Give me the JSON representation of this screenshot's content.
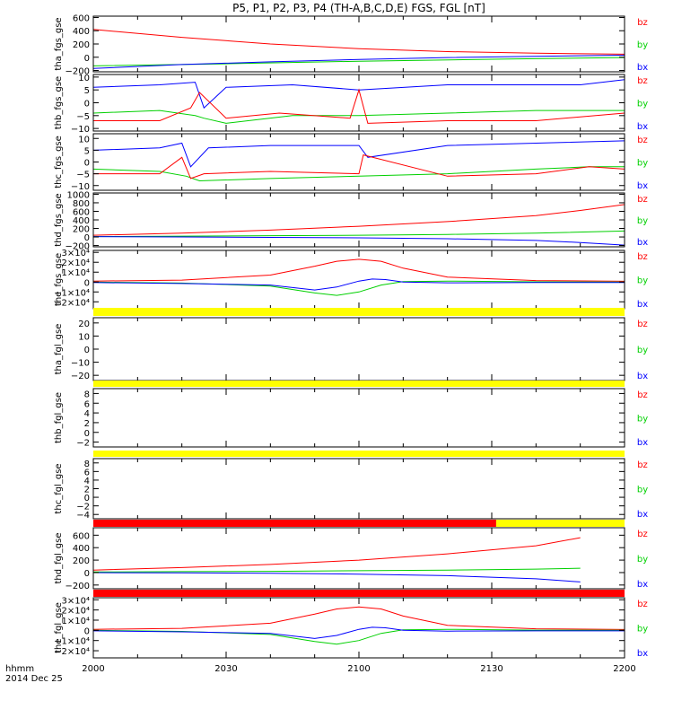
{
  "title": "P5, P1, P2, P3, P4 (TH-A,B,C,D,E) FGS, FGL [nT]",
  "footer": {
    "time_label": "hhmm",
    "date_label": "2014 Dec 25"
  },
  "colors": {
    "bx": "#0000ff",
    "by": "#00d000",
    "bz": "#ff0000",
    "flag_yellow": "#ffff00",
    "flag_red": "#ff0000",
    "axis": "#000000"
  },
  "chart_data": {
    "type": "line",
    "x_ticks": [
      "2000",
      "2030",
      "2100",
      "2130",
      "2200"
    ],
    "xlim_minutes": [
      0,
      120
    ],
    "panels": [
      {
        "ylabel": "tha_fgs_gse",
        "ylim": [
          -220,
          620
        ],
        "yticks": [
          "600",
          "400",
          "200",
          "0",
          "−200"
        ],
        "ytick_values": [
          600,
          400,
          200,
          0,
          -200
        ],
        "legend": [
          "bz",
          "by",
          "bx"
        ],
        "series": [
          {
            "name": "bz",
            "color": "#ff0000",
            "x": [
              0,
              20,
              40,
              60,
              80,
              100,
              120
            ],
            "y": [
              420,
              300,
              200,
              130,
              85,
              60,
              45
            ]
          },
          {
            "name": "by",
            "color": "#00d000",
            "x": [
              0,
              30,
              60,
              90,
              120
            ],
            "y": [
              -130,
              -100,
              -60,
              -30,
              -5
            ]
          },
          {
            "name": "bx",
            "color": "#0000ff",
            "x": [
              0,
              20,
              40,
              60,
              80,
              100,
              120
            ],
            "y": [
              -170,
              -110,
              -70,
              -35,
              -5,
              15,
              30
            ]
          }
        ],
        "flag": null
      },
      {
        "ylabel": "thb_fgs_gse",
        "ylim": [
          -11,
          11
        ],
        "yticks": [
          "10",
          "5",
          "0",
          "−5",
          "−10"
        ],
        "ytick_values": [
          10,
          5,
          0,
          -5,
          -10
        ],
        "legend": [
          "bz",
          "by",
          "bx"
        ],
        "series": [
          {
            "name": "bx",
            "color": "#0000ff",
            "x": [
              0,
              15,
              23,
              25,
              30,
              45,
              60,
              80,
              100,
              110,
              120
            ],
            "y": [
              6,
              7,
              8,
              -2,
              6,
              7,
              5,
              7,
              7,
              7,
              9
            ]
          },
          {
            "name": "by",
            "color": "#00d000",
            "x": [
              0,
              15,
              23,
              25,
              30,
              45,
              60,
              80,
              100,
              120
            ],
            "y": [
              -4,
              -3,
              -5,
              -6,
              -8,
              -5,
              -5,
              -4,
              -3,
              -3
            ]
          },
          {
            "name": "bz",
            "color": "#ff0000",
            "x": [
              0,
              15,
              22,
              24,
              30,
              42,
              58,
              60,
              62,
              80,
              100,
              120
            ],
            "y": [
              -7,
              -7,
              -2,
              4,
              -6,
              -4,
              -6,
              5,
              -8,
              -7,
              -7,
              -4
            ]
          }
        ],
        "flag": null
      },
      {
        "ylabel": "thc_fgs_gse",
        "ylim": [
          -12,
          12
        ],
        "yticks": [
          "10",
          "5",
          "0",
          "−5",
          "−10"
        ],
        "ytick_values": [
          10,
          5,
          0,
          -5,
          -10
        ],
        "legend": [
          "bz",
          "by",
          "bx"
        ],
        "series": [
          {
            "name": "bx",
            "color": "#0000ff",
            "x": [
              0,
              15,
              20,
              22,
              26,
              40,
              60,
              62,
              80,
              100,
              120
            ],
            "y": [
              5,
              6,
              8,
              -2,
              6,
              7,
              7,
              2,
              7,
              8,
              9
            ]
          },
          {
            "name": "by",
            "color": "#00d000",
            "x": [
              0,
              15,
              21,
              24,
              40,
              60,
              80,
              100,
              112,
              120
            ],
            "y": [
              -3,
              -4,
              -6,
              -8,
              -7,
              -6,
              -5,
              -3,
              -2,
              -2
            ]
          },
          {
            "name": "bz",
            "color": "#ff0000",
            "x": [
              0,
              15,
              20,
              22,
              25,
              40,
              60,
              61,
              80,
              100,
              112,
              120
            ],
            "y": [
              -5,
              -5,
              2,
              -7,
              -5,
              -4,
              -5,
              3,
              -6,
              -5,
              -2,
              -3
            ]
          }
        ],
        "flag": null
      },
      {
        "ylabel": "thd_fgs_gse",
        "ylim": [
          -230,
          1030
        ],
        "yticks": [
          "1000",
          "800",
          "600",
          "400",
          "200",
          "0",
          "−200"
        ],
        "ytick_values": [
          1000,
          800,
          600,
          400,
          200,
          0,
          -200
        ],
        "legend": [
          "bz",
          "by",
          "bx"
        ],
        "series": [
          {
            "name": "bz",
            "color": "#ff0000",
            "x": [
              0,
              20,
              40,
              60,
              80,
              100,
              110,
              120
            ],
            "y": [
              40,
              90,
              160,
              250,
              360,
              500,
              620,
              760
            ]
          },
          {
            "name": "by",
            "color": "#00d000",
            "x": [
              0,
              20,
              40,
              60,
              80,
              100,
              120
            ],
            "y": [
              10,
              20,
              30,
              40,
              60,
              90,
              140
            ]
          },
          {
            "name": "bx",
            "color": "#0000ff",
            "x": [
              0,
              20,
              40,
              60,
              80,
              100,
              110,
              120
            ],
            "y": [
              10,
              0,
              -10,
              -20,
              -40,
              -80,
              -130,
              -190
            ]
          }
        ],
        "flag": null
      },
      {
        "ylabel": "the_fgs_gse",
        "ylim": [
          -27000,
          32000
        ],
        "yticks": [
          "3×10⁴",
          "2×10⁴",
          "1×10⁴",
          "0",
          "−1×10⁴",
          "−2×10⁴"
        ],
        "ytick_values": [
          30000,
          20000,
          10000,
          0,
          -10000,
          -20000
        ],
        "legend": [
          "bz",
          "by",
          "bx"
        ],
        "series": [
          {
            "name": "bz",
            "color": "#ff0000",
            "x": [
              0,
              20,
              40,
              50,
              55,
              60,
              65,
              70,
              80,
              100,
              120
            ],
            "y": [
              1000,
              2000,
              7000,
              16000,
              21000,
              23000,
              21000,
              14000,
              5000,
              1500,
              800
            ]
          },
          {
            "name": "by",
            "color": "#00d000",
            "x": [
              0,
              20,
              40,
              50,
              55,
              60,
              65,
              70,
              80,
              100,
              120
            ],
            "y": [
              0,
              -1000,
              -4000,
              -11000,
              -13500,
              -10000,
              -3000,
              500,
              1000,
              200,
              0
            ]
          },
          {
            "name": "bx",
            "color": "#0000ff",
            "x": [
              0,
              20,
              40,
              50,
              55,
              60,
              63,
              66,
              70,
              80,
              100,
              120
            ],
            "y": [
              -500,
              -1500,
              -3000,
              -8000,
              -5000,
              1000,
              3000,
              2500,
              0,
              -800,
              -500,
              -500
            ]
          }
        ],
        "flag": null
      },
      {
        "ylabel": "tha_fgl_gse",
        "ylim": [
          -24,
          24
        ],
        "yticks": [
          "20",
          "10",
          "0",
          "−10",
          "−20"
        ],
        "ytick_values": [
          20,
          10,
          0,
          -10,
          -20
        ],
        "legend": [
          "bz",
          "by",
          "bx"
        ],
        "series": [],
        "flag": "yellow"
      },
      {
        "ylabel": "thb_fgl_gse",
        "ylim": [
          -3,
          9
        ],
        "yticks": [
          "8",
          "6",
          "4",
          "2",
          "0",
          "−2"
        ],
        "ytick_values": [
          8,
          6,
          4,
          2,
          0,
          -2
        ],
        "legend": [
          "bz",
          "by",
          "bx"
        ],
        "series": [],
        "flag": "yellow"
      },
      {
        "ylabel": "thc_fgl_gse",
        "ylim": [
          -5,
          9
        ],
        "yticks": [
          "8",
          "6",
          "4",
          "2",
          "0",
          "−2",
          "−4"
        ],
        "ytick_values": [
          8,
          6,
          4,
          2,
          0,
          -2,
          -4
        ],
        "legend": [
          "bz",
          "by",
          "bx"
        ],
        "series": [],
        "flag": "yellow"
      },
      {
        "ylabel": "thd_fgl_gse",
        "ylim": [
          -260,
          720
        ],
        "yticks": [
          "600",
          "400",
          "200",
          "0",
          "−200"
        ],
        "ytick_values": [
          600,
          400,
          200,
          0,
          -200
        ],
        "legend": [
          "bz",
          "by",
          "bx"
        ],
        "series": [
          {
            "name": "bz",
            "color": "#ff0000",
            "x": [
              0,
              20,
              40,
              60,
              80,
              100,
              110
            ],
            "y": [
              40,
              80,
              130,
              200,
              300,
              430,
              560
            ]
          },
          {
            "name": "by",
            "color": "#00d000",
            "x": [
              0,
              20,
              40,
              60,
              80,
              100,
              110
            ],
            "y": [
              10,
              15,
              20,
              30,
              40,
              55,
              70
            ]
          },
          {
            "name": "bx",
            "color": "#0000ff",
            "x": [
              0,
              20,
              40,
              60,
              80,
              100,
              110
            ],
            "y": [
              0,
              -5,
              -10,
              -25,
              -50,
              -100,
              -150
            ]
          }
        ],
        "flag": "red-yellow"
      },
      {
        "ylabel": "the_fgl_gse",
        "ylim": [
          -27000,
          32000
        ],
        "yticks": [
          "3×10⁴",
          "2×10⁴",
          "1×10⁴",
          "0",
          "−1×10⁴",
          "−2×10⁴"
        ],
        "ytick_values": [
          30000,
          20000,
          10000,
          0,
          -10000,
          -20000
        ],
        "legend": [
          "bz",
          "by",
          "bx"
        ],
        "series": [
          {
            "name": "bz",
            "color": "#ff0000",
            "x": [
              0,
              20,
              40,
              50,
              55,
              60,
              65,
              70,
              80,
              100,
              120
            ],
            "y": [
              1000,
              2000,
              7000,
              16000,
              21000,
              23000,
              21000,
              14000,
              5000,
              1500,
              800
            ]
          },
          {
            "name": "by",
            "color": "#00d000",
            "x": [
              0,
              20,
              40,
              50,
              55,
              60,
              65,
              70,
              80,
              100,
              120
            ],
            "y": [
              0,
              -1000,
              -4000,
              -11000,
              -13500,
              -10000,
              -3000,
              500,
              1000,
              200,
              0
            ]
          },
          {
            "name": "bx",
            "color": "#0000ff",
            "x": [
              0,
              20,
              40,
              50,
              55,
              60,
              63,
              66,
              70,
              80,
              100,
              120
            ],
            "y": [
              -500,
              -1500,
              -3000,
              -8000,
              -5000,
              1000,
              3000,
              2500,
              0,
              -800,
              -500,
              -500
            ]
          }
        ],
        "flag": "red"
      }
    ]
  }
}
